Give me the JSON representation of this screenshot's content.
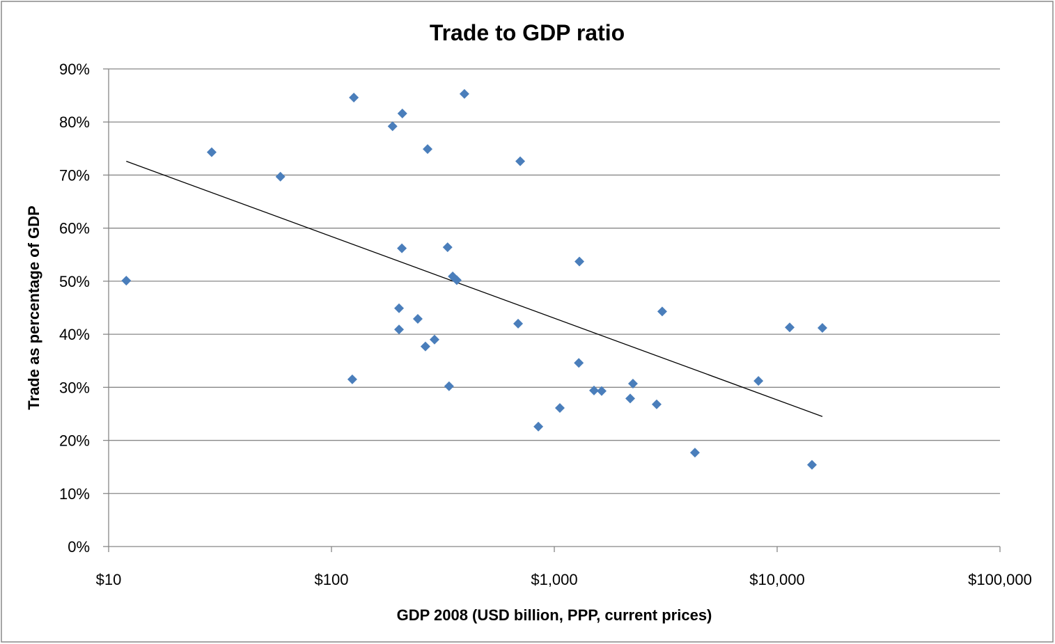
{
  "chart_data": {
    "type": "scatter",
    "title": "Trade to GDP ratio",
    "xlabel": "GDP 2008 (USD billion, PPP, current prices)",
    "ylabel": "Trade as percentage of GDP",
    "x_scale": "log",
    "xlim": [
      10,
      100000
    ],
    "ylim": [
      0,
      90
    ],
    "x_ticks": [
      10,
      100,
      1000,
      10000,
      100000
    ],
    "x_tick_labels": [
      "$10",
      "$100",
      "$1,000",
      "$10,000",
      "$100,000"
    ],
    "y_ticks": [
      0,
      10,
      20,
      30,
      40,
      50,
      60,
      70,
      80,
      90
    ],
    "y_tick_labels": [
      "0%",
      "10%",
      "20%",
      "30%",
      "40%",
      "50%",
      "60%",
      "70%",
      "80%",
      "90%"
    ],
    "grid": "horizontal",
    "legend": "none",
    "marker": "diamond",
    "marker_color": "#4a7ebb",
    "points": [
      [
        12,
        50.1
      ],
      [
        29,
        74.3
      ],
      [
        59,
        69.7
      ],
      [
        126,
        84.6
      ],
      [
        124,
        31.5
      ],
      [
        188,
        79.2
      ],
      [
        208,
        81.6
      ],
      [
        207,
        56.2
      ],
      [
        201,
        44.9
      ],
      [
        201,
        40.9
      ],
      [
        244,
        42.9
      ],
      [
        270,
        74.9
      ],
      [
        264,
        37.7
      ],
      [
        290,
        39.0
      ],
      [
        332,
        56.4
      ],
      [
        337,
        30.2
      ],
      [
        350,
        50.9
      ],
      [
        365,
        50.2
      ],
      [
        395,
        85.3
      ],
      [
        688,
        42.0
      ],
      [
        703,
        72.6
      ],
      [
        848,
        22.6
      ],
      [
        1059,
        26.1
      ],
      [
        1296,
        53.7
      ],
      [
        1288,
        34.6
      ],
      [
        1507,
        29.4
      ],
      [
        1631,
        29.3
      ],
      [
        2191,
        27.9
      ],
      [
        2254,
        30.7
      ],
      [
        2879,
        26.8
      ],
      [
        3049,
        44.3
      ],
      [
        4276,
        17.7
      ],
      [
        8241,
        31.2
      ],
      [
        11384,
        41.3
      ],
      [
        14330,
        15.4
      ],
      [
        15960,
        41.2
      ]
    ],
    "trendline": {
      "type": "logarithmic",
      "color": "#000000",
      "from": [
        12,
        72.6
      ],
      "to": [
        15960,
        24.5
      ]
    }
  }
}
